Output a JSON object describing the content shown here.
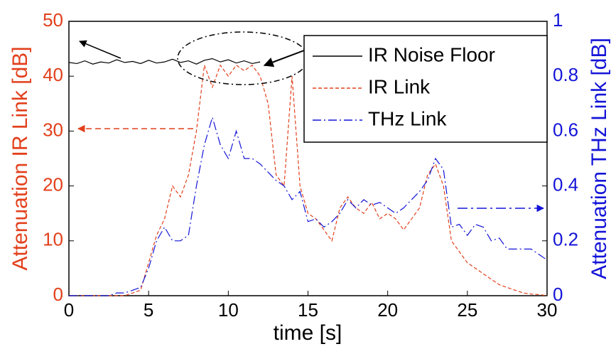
{
  "chart_data": {
    "type": "line",
    "xlabel": "time [s]",
    "ylabel": "Attenuation IR Link [dB]",
    "y2label": "Attenuation THz Link [dB]",
    "x": [
      0,
      0.5,
      1,
      1.5,
      2,
      2.5,
      3,
      3.5,
      4,
      4.5,
      5,
      5.5,
      6,
      6.5,
      7,
      7.5,
      8,
      8.5,
      9,
      9.5,
      10,
      10.5,
      11,
      11.5,
      12,
      12.5,
      13,
      13.5,
      14,
      14.5,
      15,
      15.5,
      16,
      16.5,
      17,
      17.5,
      18,
      18.5,
      19,
      19.5,
      20,
      20.5,
      21,
      21.5,
      22,
      22.5,
      23,
      23.5,
      24,
      24.5,
      25,
      25.5,
      26,
      26.5,
      27,
      27.5,
      28,
      28.5,
      29,
      29.5,
      30
    ],
    "xlim": [
      0,
      30
    ],
    "xticks": [
      0,
      5,
      10,
      15,
      20,
      25,
      30
    ],
    "ylim": [
      0,
      50
    ],
    "yticks": [
      0,
      10,
      20,
      30,
      40,
      50
    ],
    "y2lim": [
      0,
      1
    ],
    "y2ticks": [
      0,
      0.2,
      0.4,
      0.6,
      0.8,
      1
    ],
    "ycolor": "#e2401c",
    "y2color": "#1414d8",
    "series": [
      {
        "name": "IR Noise Floor",
        "color": "#000000",
        "style": "solid",
        "values": [
          42.5,
          42.3,
          42.8,
          42.2,
          42.6,
          42.4,
          43.0,
          42.5,
          42.7,
          42.3,
          42.9,
          42.4,
          42.6,
          43.1,
          42.5,
          42.8,
          42.2,
          42.9,
          43.2,
          42.6,
          43.0,
          42.4,
          42.8,
          42.3,
          42.6,
          null,
          null,
          null,
          null,
          null,
          null,
          null,
          null,
          null,
          null,
          null,
          null,
          null,
          null,
          null,
          null,
          null,
          null,
          null,
          null,
          null,
          null,
          null,
          null,
          null,
          null,
          null,
          null,
          null,
          null,
          null,
          null,
          null,
          null,
          null,
          null
        ]
      },
      {
        "name": "IR Link",
        "color": "#e2401c",
        "style": "dashed",
        "values": [
          0,
          0,
          0,
          0,
          0,
          0,
          0,
          0,
          0.5,
          1,
          6,
          11,
          14,
          20,
          18,
          22,
          30,
          42,
          38,
          42,
          40,
          42,
          41,
          42,
          40,
          35,
          22,
          20,
          40,
          20,
          15,
          14,
          12,
          10,
          16,
          18,
          16,
          15,
          17,
          14,
          15,
          14,
          12,
          14,
          16,
          22,
          24,
          20,
          10,
          8,
          6,
          5,
          4,
          3,
          2,
          1.5,
          1,
          0.5,
          0.3,
          0.2,
          0
        ]
      },
      {
        "name": "THz Link",
        "color": "#1414d8",
        "style": "dashdot",
        "axis": "y2",
        "values": [
          0,
          0,
          0,
          0,
          0,
          0,
          0.01,
          0.01,
          0.02,
          0.03,
          0.1,
          0.2,
          0.25,
          0.2,
          0.2,
          0.22,
          0.4,
          0.55,
          0.65,
          0.55,
          0.5,
          0.6,
          0.5,
          0.5,
          0.48,
          0.45,
          0.42,
          0.4,
          0.35,
          0.38,
          0.27,
          0.28,
          0.25,
          0.27,
          0.3,
          0.35,
          0.32,
          0.35,
          0.33,
          0.34,
          0.32,
          0.3,
          0.32,
          0.35,
          0.38,
          0.42,
          0.5,
          0.46,
          0.25,
          0.26,
          0.22,
          0.26,
          0.25,
          0.2,
          0.21,
          0.17,
          0.17,
          0.17,
          0.17,
          0.15,
          0.13
        ]
      }
    ]
  }
}
